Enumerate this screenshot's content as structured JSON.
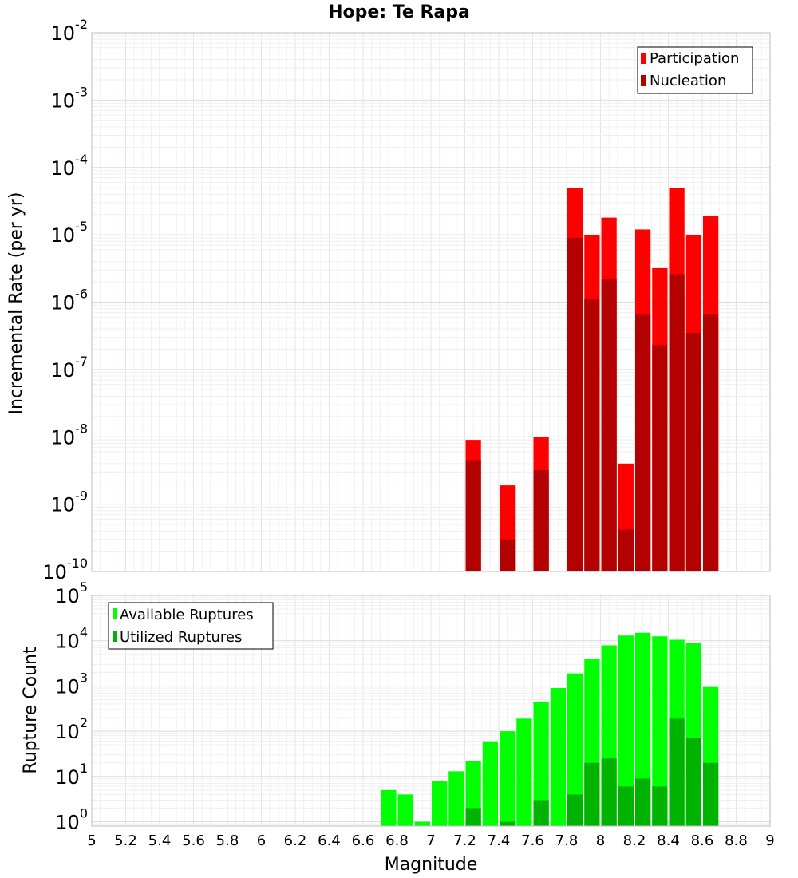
{
  "chart_data": [
    {
      "type": "bar",
      "title": "Hope: Te Rapa",
      "ylabel": "Incremental Rate (per yr)",
      "xlabel": "",
      "xlim": [
        5,
        9
      ],
      "ylim": [
        1e-10,
        0.01
      ],
      "y_scale": "log",
      "grid": true,
      "legend_position": "top-right",
      "y_ticks": [
        {
          "base": "10",
          "exp": "-10",
          "value": 1e-10
        },
        {
          "base": "10",
          "exp": "-9",
          "value": 1e-09
        },
        {
          "base": "10",
          "exp": "-8",
          "value": 1e-08
        },
        {
          "base": "10",
          "exp": "-7",
          "value": 1e-07
        },
        {
          "base": "10",
          "exp": "-6",
          "value": 1e-06
        },
        {
          "base": "10",
          "exp": "-5",
          "value": 1e-05
        },
        {
          "base": "10",
          "exp": "-4",
          "value": 0.0001
        },
        {
          "base": "10",
          "exp": "-3",
          "value": 0.001
        },
        {
          "base": "10",
          "exp": "-2",
          "value": 0.01
        }
      ],
      "series": [
        {
          "name": "Participation",
          "color": "#ff0000",
          "points": [
            {
              "x": 7.25,
              "y": 9e-09
            },
            {
              "x": 7.45,
              "y": 1.9e-09
            },
            {
              "x": 7.65,
              "y": 1e-08
            },
            {
              "x": 7.85,
              "y": 5e-05
            },
            {
              "x": 7.95,
              "y": 1e-05
            },
            {
              "x": 8.05,
              "y": 1.8e-05
            },
            {
              "x": 8.15,
              "y": 4e-09
            },
            {
              "x": 8.25,
              "y": 1.2e-05
            },
            {
              "x": 8.35,
              "y": 3.2e-06
            },
            {
              "x": 8.45,
              "y": 5e-05
            },
            {
              "x": 8.55,
              "y": 1e-05
            },
            {
              "x": 8.65,
              "y": 1.9e-05
            }
          ]
        },
        {
          "name": "Nucleation",
          "color": "#b30000",
          "points": [
            {
              "x": 7.25,
              "y": 4.5e-09
            },
            {
              "x": 7.45,
              "y": 3e-10
            },
            {
              "x": 7.65,
              "y": 3.2e-09
            },
            {
              "x": 7.85,
              "y": 9e-06
            },
            {
              "x": 7.95,
              "y": 1.1e-06
            },
            {
              "x": 8.05,
              "y": 2.2e-06
            },
            {
              "x": 8.15,
              "y": 4.2e-10
            },
            {
              "x": 8.25,
              "y": 6.5e-07
            },
            {
              "x": 8.35,
              "y": 2.3e-07
            },
            {
              "x": 8.45,
              "y": 2.6e-06
            },
            {
              "x": 8.55,
              "y": 3.5e-07
            },
            {
              "x": 8.65,
              "y": 6.5e-07
            }
          ]
        }
      ]
    },
    {
      "type": "bar",
      "title": "",
      "ylabel": "Rupture Count",
      "xlabel": "Magnitude",
      "xlim": [
        5,
        9
      ],
      "ylim": [
        0.8,
        100000.0
      ],
      "y_scale": "log",
      "grid": true,
      "legend_position": "top-left",
      "x_ticks": [
        "5",
        "5.2",
        "5.4",
        "5.6",
        "5.8",
        "6",
        "6.2",
        "6.4",
        "6.6",
        "6.8",
        "7",
        "7.2",
        "7.4",
        "7.6",
        "7.8",
        "8",
        "8.2",
        "8.4",
        "8.6",
        "8.8",
        "9"
      ],
      "y_ticks": [
        {
          "base": "10",
          "exp": "0",
          "value": 1
        },
        {
          "base": "10",
          "exp": "1",
          "value": 10
        },
        {
          "base": "10",
          "exp": "2",
          "value": 100
        },
        {
          "base": "10",
          "exp": "3",
          "value": 1000
        },
        {
          "base": "10",
          "exp": "4",
          "value": 10000
        },
        {
          "base": "10",
          "exp": "5",
          "value": 100000
        }
      ],
      "series": [
        {
          "name": "Available Ruptures",
          "color": "#00ff00",
          "points": [
            {
              "x": 6.75,
              "y": 5
            },
            {
              "x": 6.85,
              "y": 4
            },
            {
              "x": 6.95,
              "y": 1
            },
            {
              "x": 7.05,
              "y": 8
            },
            {
              "x": 7.15,
              "y": 13
            },
            {
              "x": 7.25,
              "y": 22
            },
            {
              "x": 7.35,
              "y": 60
            },
            {
              "x": 7.45,
              "y": 100
            },
            {
              "x": 7.55,
              "y": 190
            },
            {
              "x": 7.65,
              "y": 450
            },
            {
              "x": 7.75,
              "y": 900
            },
            {
              "x": 7.85,
              "y": 1900
            },
            {
              "x": 7.95,
              "y": 3900
            },
            {
              "x": 8.05,
              "y": 7900
            },
            {
              "x": 8.15,
              "y": 13000
            },
            {
              "x": 8.25,
              "y": 15000
            },
            {
              "x": 8.35,
              "y": 12500
            },
            {
              "x": 8.45,
              "y": 10500
            },
            {
              "x": 8.55,
              "y": 9000
            },
            {
              "x": 8.65,
              "y": 950
            }
          ]
        },
        {
          "name": "Utilized Ruptures",
          "color": "#00b300",
          "points": [
            {
              "x": 7.25,
              "y": 2
            },
            {
              "x": 7.45,
              "y": 1
            },
            {
              "x": 7.65,
              "y": 3
            },
            {
              "x": 7.85,
              "y": 4
            },
            {
              "x": 7.95,
              "y": 20
            },
            {
              "x": 8.05,
              "y": 25
            },
            {
              "x": 8.15,
              "y": 6
            },
            {
              "x": 8.25,
              "y": 9
            },
            {
              "x": 8.35,
              "y": 6
            },
            {
              "x": 8.45,
              "y": 190
            },
            {
              "x": 8.55,
              "y": 70
            },
            {
              "x": 8.65,
              "y": 20
            }
          ]
        }
      ]
    }
  ]
}
